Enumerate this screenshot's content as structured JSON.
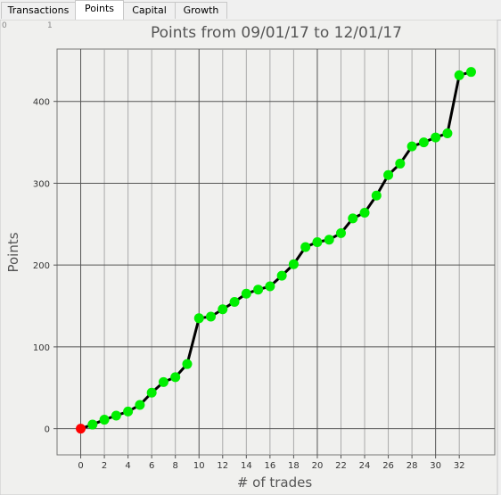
{
  "tabs": [
    "Transactions",
    "Points",
    "Capital",
    "Growth"
  ],
  "corner_labels": [
    "0",
    "1"
  ],
  "chart_data": {
    "type": "line",
    "title": "Points from 09/01/17 to 12/01/17",
    "x_label": "# of trades",
    "y_label": "Points",
    "x": [
      0,
      1,
      2,
      3,
      4,
      5,
      6,
      7,
      8,
      9,
      10,
      11,
      12,
      13,
      14,
      15,
      16,
      17,
      18,
      19,
      20,
      21,
      22,
      23,
      24,
      25,
      26,
      27,
      28,
      29,
      30,
      31,
      32,
      33
    ],
    "series": [
      {
        "name": "Points",
        "color": "#000000",
        "marker_color": "#00ee00",
        "first_marker_color": "#ff0000",
        "values": [
          0,
          5,
          11,
          16,
          21,
          29,
          44,
          57,
          63,
          79,
          135,
          137,
          146,
          155,
          165,
          170,
          174,
          187,
          201,
          222,
          228,
          231,
          239,
          257,
          264,
          285,
          310,
          324,
          345,
          350,
          356,
          361,
          432,
          436
        ]
      }
    ],
    "xlim": [
      -2,
      35
    ],
    "xticks": [
      0,
      2,
      4,
      6,
      8,
      10,
      12,
      14,
      16,
      18,
      20,
      22,
      24,
      26,
      28,
      30,
      32
    ],
    "ylim": [
      -32,
      464
    ],
    "yticks": [
      0,
      100,
      200,
      300,
      400
    ],
    "grid": true
  }
}
